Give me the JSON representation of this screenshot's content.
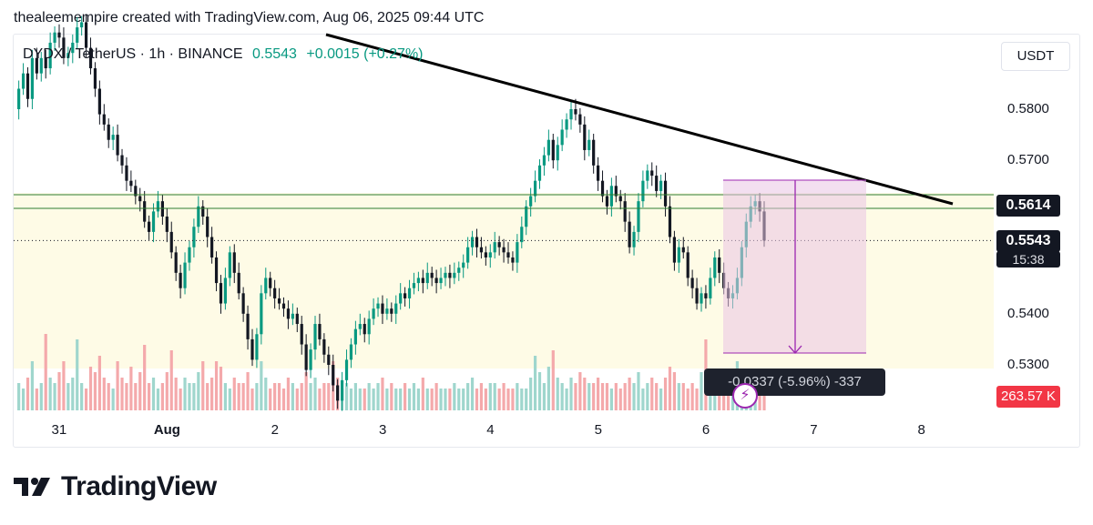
{
  "header": {
    "attribution": "thealeemempire created with TradingView.com, Aug 06, 2025 09:44 UTC"
  },
  "legend": {
    "symbol": "DYDX / TetherUS · 1h · BINANCE",
    "last": "0.5543",
    "change": "+0.0015 (+0.27%)"
  },
  "currency": "USDT",
  "price_tags": {
    "level": "0.5614",
    "last": "0.5543",
    "timer": "15:38",
    "volume": "263.57 K"
  },
  "measurement": {
    "label": "-0.0337 (-5.96%) -337"
  },
  "brand": {
    "name": "TradingView",
    "logo_icon": "tradingview-logo-icon"
  },
  "colors": {
    "up": "#089981",
    "down": "#f23645",
    "bull_candle": "#089981",
    "bear_candle": "#131722",
    "range_fill": "#f3dcef",
    "range_border": "#9c27b0",
    "zone_fill": "#fefbe6",
    "level_lines": "#43a047"
  },
  "icons": {
    "measure_icon": "lightning-bolt-icon"
  },
  "chart_data": {
    "type": "candlestick",
    "title": "DYDX / TetherUS · 1h · BINANCE",
    "ylim": [
      0.521,
      0.595
    ],
    "y_ticks": [
      "0.5800",
      "0.5700",
      "0.5400",
      "0.5300"
    ],
    "y_tick_values": [
      0.58,
      0.57,
      0.54,
      0.53
    ],
    "x_ticks": [
      {
        "label": "31",
        "hour": 0,
        "bold": false
      },
      {
        "label": "Aug",
        "hour": 24,
        "bold": true
      },
      {
        "label": "2",
        "hour": 48,
        "bold": false
      },
      {
        "label": "3",
        "hour": 72,
        "bold": false
      },
      {
        "label": "4",
        "hour": 96,
        "bold": false
      },
      {
        "label": "5",
        "hour": 120,
        "bold": false
      },
      {
        "label": "6",
        "hour": 144,
        "bold": false
      },
      {
        "label": "7",
        "hour": 168,
        "bold": false
      },
      {
        "label": "8",
        "hour": 192,
        "bold": false
      }
    ],
    "closes": [
      0.58,
      0.584,
      0.587,
      0.582,
      0.59,
      0.587,
      0.59,
      0.588,
      0.593,
      0.595,
      0.594,
      0.59,
      0.591,
      0.593,
      0.596,
      0.597,
      0.592,
      0.588,
      0.584,
      0.579,
      0.577,
      0.574,
      0.575,
      0.571,
      0.569,
      0.566,
      0.565,
      0.563,
      0.562,
      0.558,
      0.556,
      0.56,
      0.562,
      0.559,
      0.556,
      0.552,
      0.548,
      0.545,
      0.55,
      0.553,
      0.557,
      0.561,
      0.559,
      0.555,
      0.551,
      0.546,
      0.542,
      0.547,
      0.552,
      0.548,
      0.544,
      0.54,
      0.535,
      0.531,
      0.536,
      0.544,
      0.547,
      0.545,
      0.543,
      0.542,
      0.541,
      0.539,
      0.54,
      0.538,
      0.534,
      0.529,
      0.533,
      0.538,
      0.535,
      0.532,
      0.53,
      0.526,
      0.523,
      0.527,
      0.531,
      0.534,
      0.537,
      0.538,
      0.536,
      0.539,
      0.541,
      0.542,
      0.54,
      0.541,
      0.54,
      0.542,
      0.544,
      0.543,
      0.545,
      0.546,
      0.547,
      0.546,
      0.548,
      0.547,
      0.546,
      0.547,
      0.548,
      0.547,
      0.548,
      0.549,
      0.55,
      0.553,
      0.555,
      0.553,
      0.552,
      0.551,
      0.552,
      0.554,
      0.553,
      0.552,
      0.551,
      0.55,
      0.554,
      0.557,
      0.561,
      0.563,
      0.566,
      0.569,
      0.571,
      0.574,
      0.57,
      0.573,
      0.576,
      0.578,
      0.58,
      0.579,
      0.577,
      0.572,
      0.574,
      0.569,
      0.566,
      0.563,
      0.561,
      0.565,
      0.563,
      0.562,
      0.558,
      0.553,
      0.556,
      0.562,
      0.566,
      0.568,
      0.567,
      0.564,
      0.566,
      0.561,
      0.555,
      0.55,
      0.553,
      0.552,
      0.547,
      0.545,
      0.542,
      0.544,
      0.543,
      0.547,
      0.551,
      0.548,
      0.545,
      0.543,
      0.544,
      0.547,
      0.553,
      0.558,
      0.561,
      0.562,
      0.56,
      0.5543
    ],
    "volumes": [
      4,
      5,
      4,
      6,
      9,
      4,
      5,
      14,
      6,
      5,
      7,
      9,
      5,
      6,
      13,
      5,
      4,
      8,
      7,
      10,
      6,
      5,
      4,
      9,
      6,
      5,
      8,
      5,
      7,
      12,
      5,
      6,
      4,
      5,
      7,
      11,
      6,
      4,
      6,
      5,
      5,
      7,
      9,
      5,
      6,
      9,
      8,
      5,
      4,
      6,
      5,
      5,
      7,
      4,
      5,
      9,
      6,
      4,
      5,
      5,
      4,
      6,
      5,
      4,
      5,
      7,
      5,
      6,
      4,
      5,
      5,
      9,
      6,
      4,
      5,
      4,
      5,
      4,
      4,
      5,
      4,
      5,
      6,
      4,
      5,
      4,
      4,
      5,
      4,
      5,
      4,
      6,
      4,
      4,
      5,
      4,
      4,
      4,
      5,
      4,
      4,
      5,
      6,
      4,
      5,
      4,
      5,
      5,
      4,
      5,
      4,
      4,
      5,
      4,
      4,
      6,
      10,
      7,
      5,
      8,
      11,
      6,
      5,
      4,
      6,
      5,
      7,
      6,
      5,
      5,
      6,
      5,
      5,
      4,
      5,
      4,
      5,
      6,
      5,
      7,
      4,
      5,
      6,
      5,
      4,
      6,
      8,
      7,
      5,
      5,
      4,
      5,
      4,
      7,
      13,
      6,
      5,
      6,
      5,
      4,
      6,
      9,
      7,
      5,
      6,
      5,
      7,
      5,
      4
    ]
  }
}
